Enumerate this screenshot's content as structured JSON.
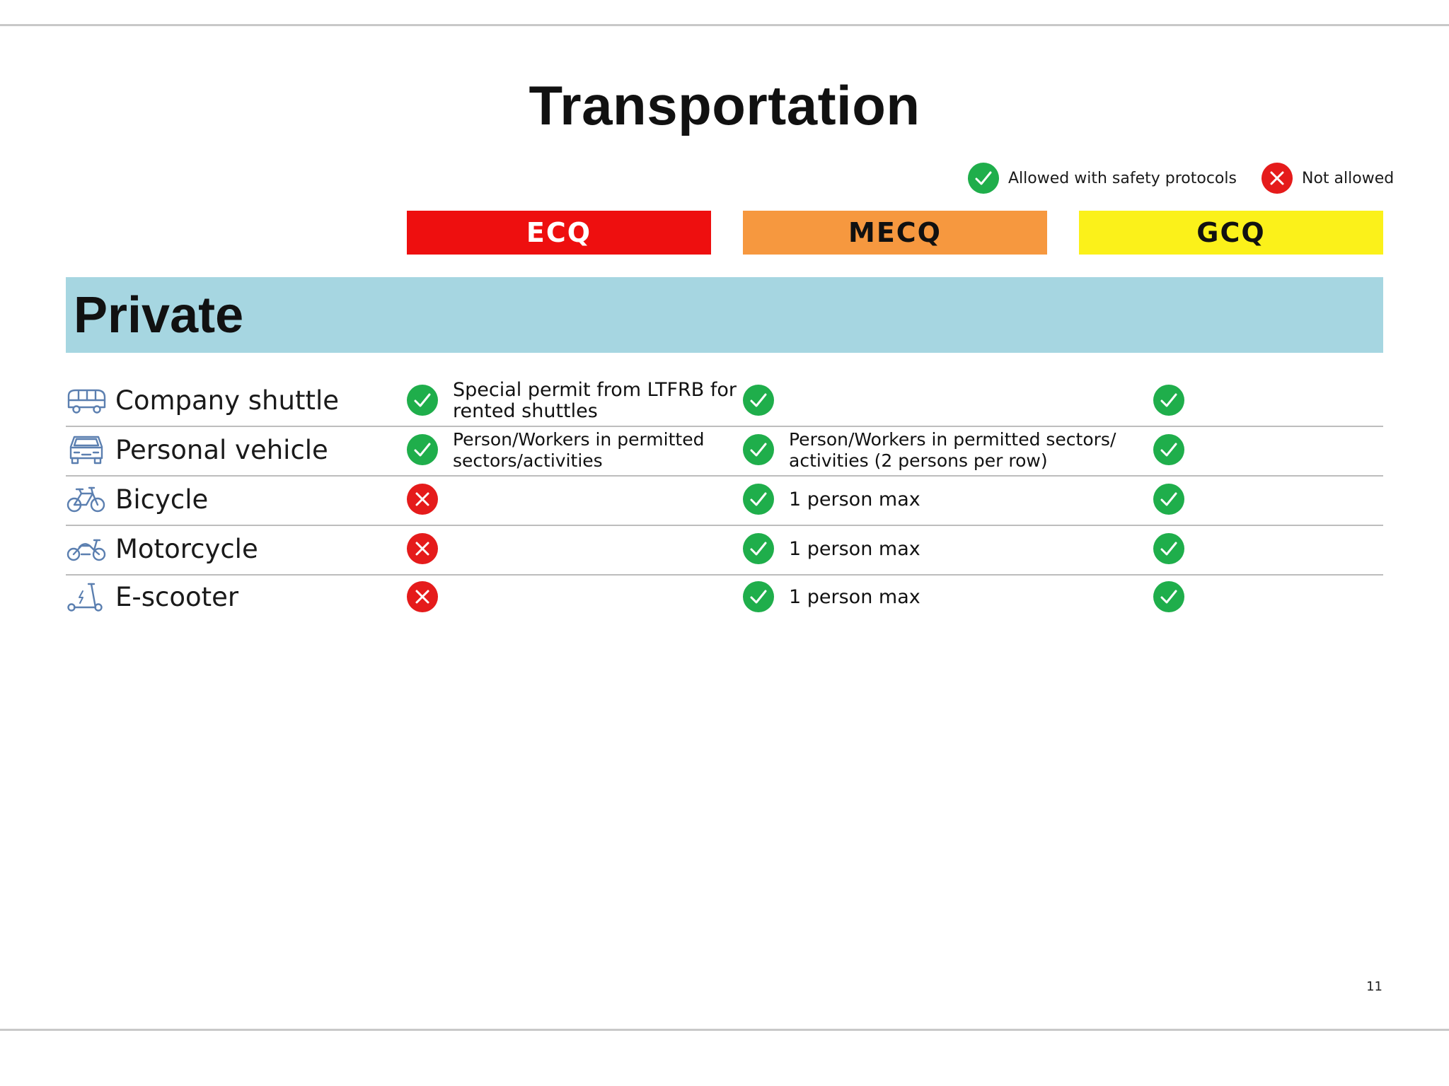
{
  "title": "Transportation",
  "legend": {
    "allowed_label": "Allowed with safety protocols",
    "not_allowed_label": "Not allowed"
  },
  "phases": [
    "ECQ",
    "MECQ",
    "GCQ"
  ],
  "section": "Private",
  "colors": {
    "ecq": "#ee0f0f",
    "mecq": "#f6983f",
    "gcq": "#fbf11a",
    "section_band": "#a6d6e1",
    "allowed": "#1fae4b",
    "not_allowed": "#e51b1b",
    "vehicle_icon": "#5b7fb0"
  },
  "rows": [
    {
      "name": "Company shuttle",
      "icon": "shuttle-bus-icon",
      "ecq": {
        "status": "allowed",
        "note": "Special permit from LTFRB for rented shuttles"
      },
      "mecq": {
        "status": "allowed",
        "note": ""
      },
      "gcq": {
        "status": "allowed"
      }
    },
    {
      "name": "Personal vehicle",
      "icon": "car-icon",
      "ecq": {
        "status": "allowed",
        "note": "Person/Workers in permitted sectors/activities"
      },
      "mecq": {
        "status": "allowed",
        "note": "Person/Workers in permitted sectors/ activities (2 persons per row)"
      },
      "gcq": {
        "status": "allowed"
      }
    },
    {
      "name": "Bicycle",
      "icon": "bicycle-icon",
      "ecq": {
        "status": "not_allowed",
        "note": ""
      },
      "mecq": {
        "status": "allowed",
        "note": "1 person max"
      },
      "gcq": {
        "status": "allowed"
      }
    },
    {
      "name": "Motorcycle",
      "icon": "motorcycle-icon",
      "ecq": {
        "status": "not_allowed",
        "note": ""
      },
      "mecq": {
        "status": "allowed",
        "note": "1 person max"
      },
      "gcq": {
        "status": "allowed"
      }
    },
    {
      "name": "E-scooter",
      "icon": "e-scooter-icon",
      "ecq": {
        "status": "not_allowed",
        "note": ""
      },
      "mecq": {
        "status": "allowed",
        "note": "1 person max"
      },
      "gcq": {
        "status": "allowed"
      }
    }
  ],
  "page_number": "11"
}
